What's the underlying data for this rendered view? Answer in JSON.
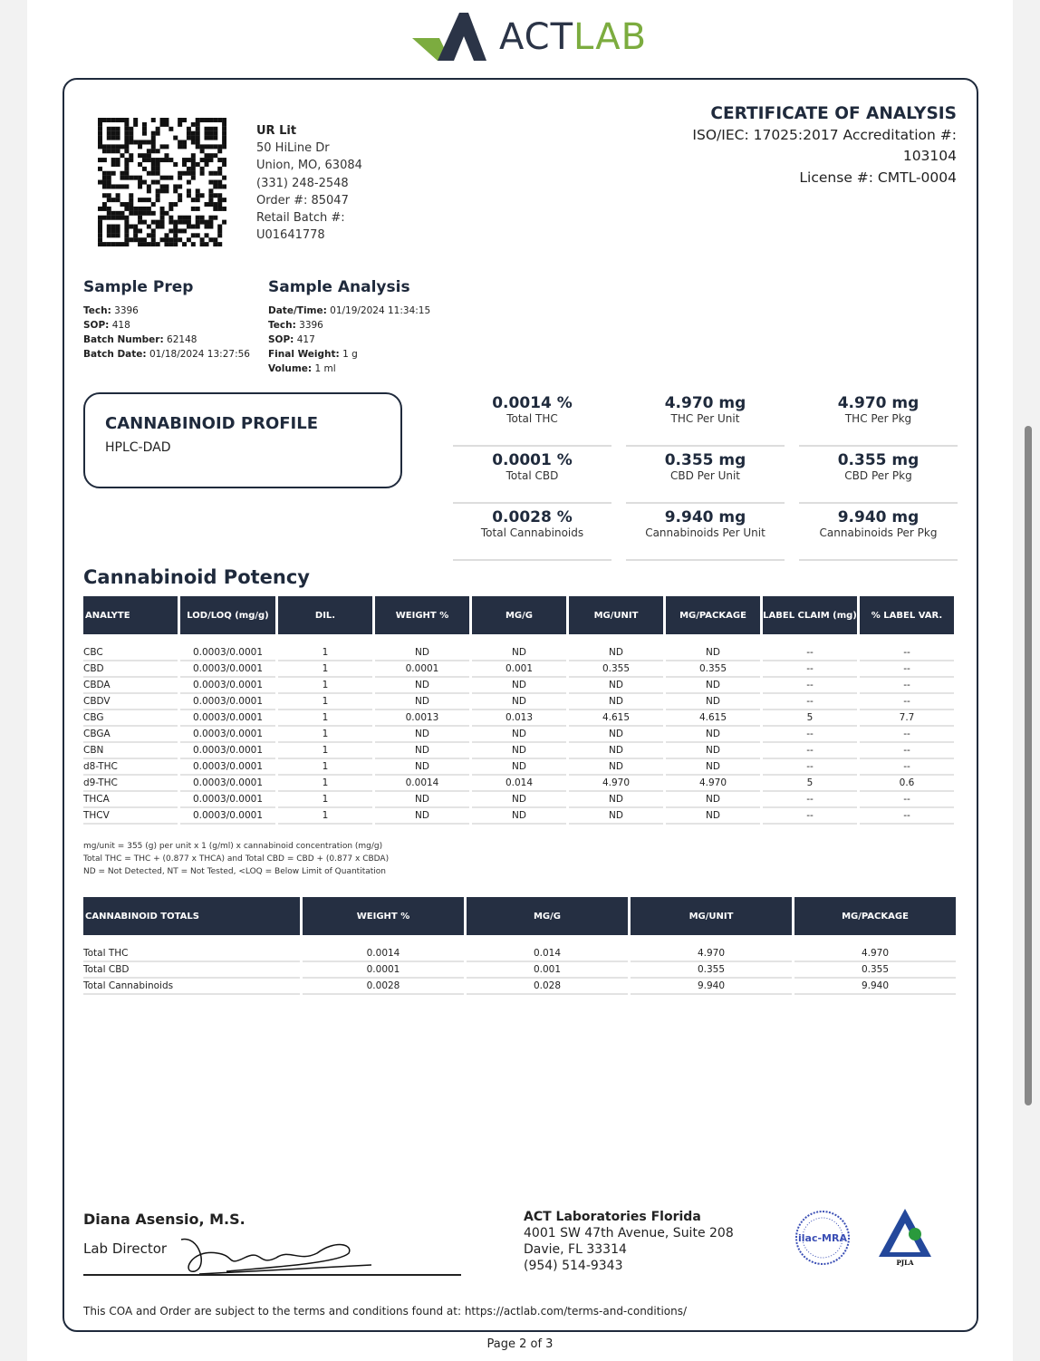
{
  "logo": {
    "text_a": "ACT",
    "text_b": "LAB"
  },
  "client": {
    "name": "UR Lit",
    "address1": "50 HiLine Dr",
    "address2": "Union, MO, 63084",
    "phone": "(331) 248-2548",
    "order": "Order #: 85047",
    "batch_label": "Retail Batch #:",
    "batch": "U01641778"
  },
  "coa": {
    "title": "CERTIFICATE OF ANALYSIS",
    "accreditation": "ISO/IEC: 17025:2017 Accreditation #:",
    "accreditation_no": "103104",
    "license": "License #: CMTL-0004"
  },
  "sample_prep": {
    "title": "Sample Prep",
    "fields": [
      {
        "k": "Tech:",
        "v": " 3396"
      },
      {
        "k": "SOP:",
        "v": " 418"
      },
      {
        "k": "Batch Number:",
        "v": " 62148"
      },
      {
        "k": "Batch Date:",
        "v": " 01/18/2024 13:27:56"
      }
    ]
  },
  "sample_analysis": {
    "title": "Sample Analysis",
    "fields": [
      {
        "k": "Date/Time:",
        "v": " 01/19/2024 11:34:15"
      },
      {
        "k": "Tech:",
        "v": " 3396"
      },
      {
        "k": "SOP:",
        "v": " 417"
      },
      {
        "k": "Final Weight:",
        "v": " 1 g"
      },
      {
        "k": "Volume:",
        "v": " 1 ml"
      }
    ]
  },
  "profile": {
    "title": "CANNABINOID PROFILE",
    "method": "HPLC-DAD"
  },
  "summary": [
    {
      "value": "0.0014 %",
      "label": "Total THC"
    },
    {
      "value": "4.970 mg",
      "label": "THC Per Unit"
    },
    {
      "value": "4.970 mg",
      "label": "THC Per Pkg"
    },
    {
      "value": "0.0001 %",
      "label": "Total CBD"
    },
    {
      "value": "0.355 mg",
      "label": "CBD Per Unit"
    },
    {
      "value": "0.355 mg",
      "label": "CBD Per Pkg"
    },
    {
      "value": "0.0028 %",
      "label": "Total Cannabinoids"
    },
    {
      "value": "9.940 mg",
      "label": "Cannabinoids Per Unit"
    },
    {
      "value": "9.940 mg",
      "label": "Cannabinoids Per Pkg"
    }
  ],
  "potency": {
    "title": "Cannabinoid Potency",
    "headers": [
      "ANALYTE",
      "LOD/LOQ (mg/g)",
      "DIL.",
      "WEIGHT %",
      "MG/G",
      "MG/UNIT",
      "MG/PACKAGE",
      "LABEL CLAIM (mg)",
      "% LABEL VAR."
    ],
    "rows": [
      [
        "CBC",
        "0.0003/0.0001",
        "1",
        "ND",
        "ND",
        "ND",
        "ND",
        "--",
        "--"
      ],
      [
        "CBD",
        "0.0003/0.0001",
        "1",
        "0.0001",
        "0.001",
        "0.355",
        "0.355",
        "--",
        "--"
      ],
      [
        "CBDA",
        "0.0003/0.0001",
        "1",
        "ND",
        "ND",
        "ND",
        "ND",
        "--",
        "--"
      ],
      [
        "CBDV",
        "0.0003/0.0001",
        "1",
        "ND",
        "ND",
        "ND",
        "ND",
        "--",
        "--"
      ],
      [
        "CBG",
        "0.0003/0.0001",
        "1",
        "0.0013",
        "0.013",
        "4.615",
        "4.615",
        "5",
        "7.7"
      ],
      [
        "CBGA",
        "0.0003/0.0001",
        "1",
        "ND",
        "ND",
        "ND",
        "ND",
        "--",
        "--"
      ],
      [
        "CBN",
        "0.0003/0.0001",
        "1",
        "ND",
        "ND",
        "ND",
        "ND",
        "--",
        "--"
      ],
      [
        "d8-THC",
        "0.0003/0.0001",
        "1",
        "ND",
        "ND",
        "ND",
        "ND",
        "--",
        "--"
      ],
      [
        "d9-THC",
        "0.0003/0.0001",
        "1",
        "0.0014",
        "0.014",
        "4.970",
        "4.970",
        "5",
        "0.6"
      ],
      [
        "THCA",
        "0.0003/0.0001",
        "1",
        "ND",
        "ND",
        "ND",
        "ND",
        "--",
        "--"
      ],
      [
        "THCV",
        "0.0003/0.0001",
        "1",
        "ND",
        "ND",
        "ND",
        "ND",
        "--",
        "--"
      ]
    ]
  },
  "notes": [
    "mg/unit = 355 (g) per unit x 1 (g/ml) x cannabinoid concentration (mg/g)",
    "Total THC = THC + (0.877 x THCA) and Total CBD = CBD + (0.877 x CBDA)",
    "ND = Not Detected, NT = Not Tested, <LOQ = Below Limit of Quantitation"
  ],
  "totals": {
    "headers": [
      "CANNABINOID TOTALS",
      "WEIGHT %",
      "MG/G",
      "MG/UNIT",
      "MG/PACKAGE"
    ],
    "rows": [
      [
        "Total THC",
        "0.0014",
        "0.014",
        "4.970",
        "4.970"
      ],
      [
        "Total CBD",
        "0.0001",
        "0.001",
        "0.355",
        "0.355"
      ],
      [
        "Total Cannabinoids",
        "0.0028",
        "0.028",
        "9.940",
        "9.940"
      ]
    ]
  },
  "signatory": {
    "name": "Diana Asensio, M.S.",
    "role": "Lab Director"
  },
  "lab": {
    "name": "ACT Laboratories Florida",
    "address1": "4001 SW 47th Avenue, Suite 208",
    "address2": "Davie, FL 33314",
    "phone": "(954) 514-9343"
  },
  "badges": {
    "ilac": "ilac-MRA",
    "pjla": "PJLA"
  },
  "footer": {
    "text": "This COA and Order are subject to the terms and conditions found at: ",
    "link": "https://actlab.com/terms-and-conditions/"
  },
  "page": "Page 2 of 3",
  "colors": {
    "navy": "#252f42",
    "green": "#7cac3f"
  }
}
